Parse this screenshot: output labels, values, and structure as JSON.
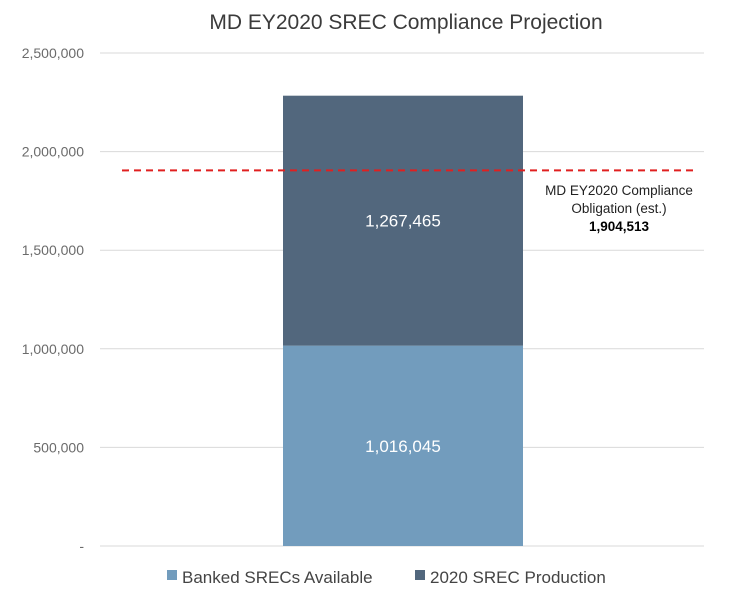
{
  "chart_data": {
    "type": "bar",
    "stacked": true,
    "title": "MD EY2020 SREC Compliance Projection",
    "categories": [
      ""
    ],
    "series": [
      {
        "name": "Banked SRECs Available",
        "values": [
          1016045
        ],
        "label": "1,016,045",
        "color": "#729cbd"
      },
      {
        "name": "2020 SREC Production",
        "values": [
          1267465
        ],
        "label": "1,267,465",
        "color": "#52677d"
      }
    ],
    "ylim": [
      0,
      2500000
    ],
    "yticks": [
      0,
      500000,
      1000000,
      1500000,
      2000000,
      2500000
    ],
    "ytick_labels": [
      "-",
      "500,000",
      "1,000,000",
      "1,500,000",
      "2,000,000",
      "2,500,000"
    ],
    "grid": true,
    "legend_position": "bottom",
    "reference_line": {
      "value": 1904513,
      "style": "dashed",
      "color": "#e02020",
      "label_line1": "MD EY2020 Compliance",
      "label_line2": "Obligation (est.)",
      "value_label": "1,904,513"
    }
  }
}
